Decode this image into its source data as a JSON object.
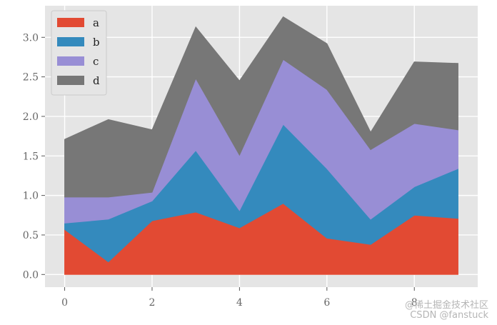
{
  "chart_data": {
    "type": "area",
    "stacked": true,
    "style": "ggplot",
    "x": [
      0,
      1,
      2,
      3,
      4,
      5,
      6,
      7,
      8,
      9
    ],
    "series": [
      {
        "name": "a",
        "color": "#E24A33",
        "values": [
          0.57,
          0.16,
          0.68,
          0.79,
          0.59,
          0.9,
          0.46,
          0.38,
          0.75,
          0.71
        ]
      },
      {
        "name": "b",
        "color": "#348ABD",
        "values": [
          0.08,
          0.54,
          0.25,
          0.78,
          0.22,
          1.0,
          0.88,
          0.32,
          0.36,
          0.63
        ]
      },
      {
        "name": "c",
        "color": "#988ED5",
        "values": [
          0.33,
          0.28,
          0.11,
          0.91,
          0.7,
          0.82,
          1.0,
          0.88,
          0.8,
          0.49
        ]
      },
      {
        "name": "d",
        "color": "#777777",
        "values": [
          0.73,
          0.98,
          0.79,
          0.65,
          0.94,
          0.54,
          0.58,
          0.22,
          0.78,
          0.84
        ]
      }
    ],
    "xticks": [
      "0",
      "2",
      "4",
      "6",
      "8"
    ],
    "xtick_values": [
      0,
      2,
      4,
      6,
      8
    ],
    "yticks": [
      "0.0",
      "0.5",
      "1.0",
      "1.5",
      "2.0",
      "2.5",
      "3.0"
    ],
    "ytick_values": [
      0,
      0.5,
      1.0,
      1.5,
      2.0,
      2.5,
      3.0
    ],
    "xlim": [
      -0.45,
      9.45
    ],
    "ylim": [
      -0.16,
      3.4
    ],
    "grid": true,
    "legend": "top-left",
    "title": "",
    "xlabel": "",
    "ylabel": "",
    "background_color": "#E5E5E5",
    "grid_color": "#FFFFFF"
  },
  "watermark": {
    "line1": "@稀土掘金技术社区",
    "line2": "CSDN @fanstuck"
  }
}
